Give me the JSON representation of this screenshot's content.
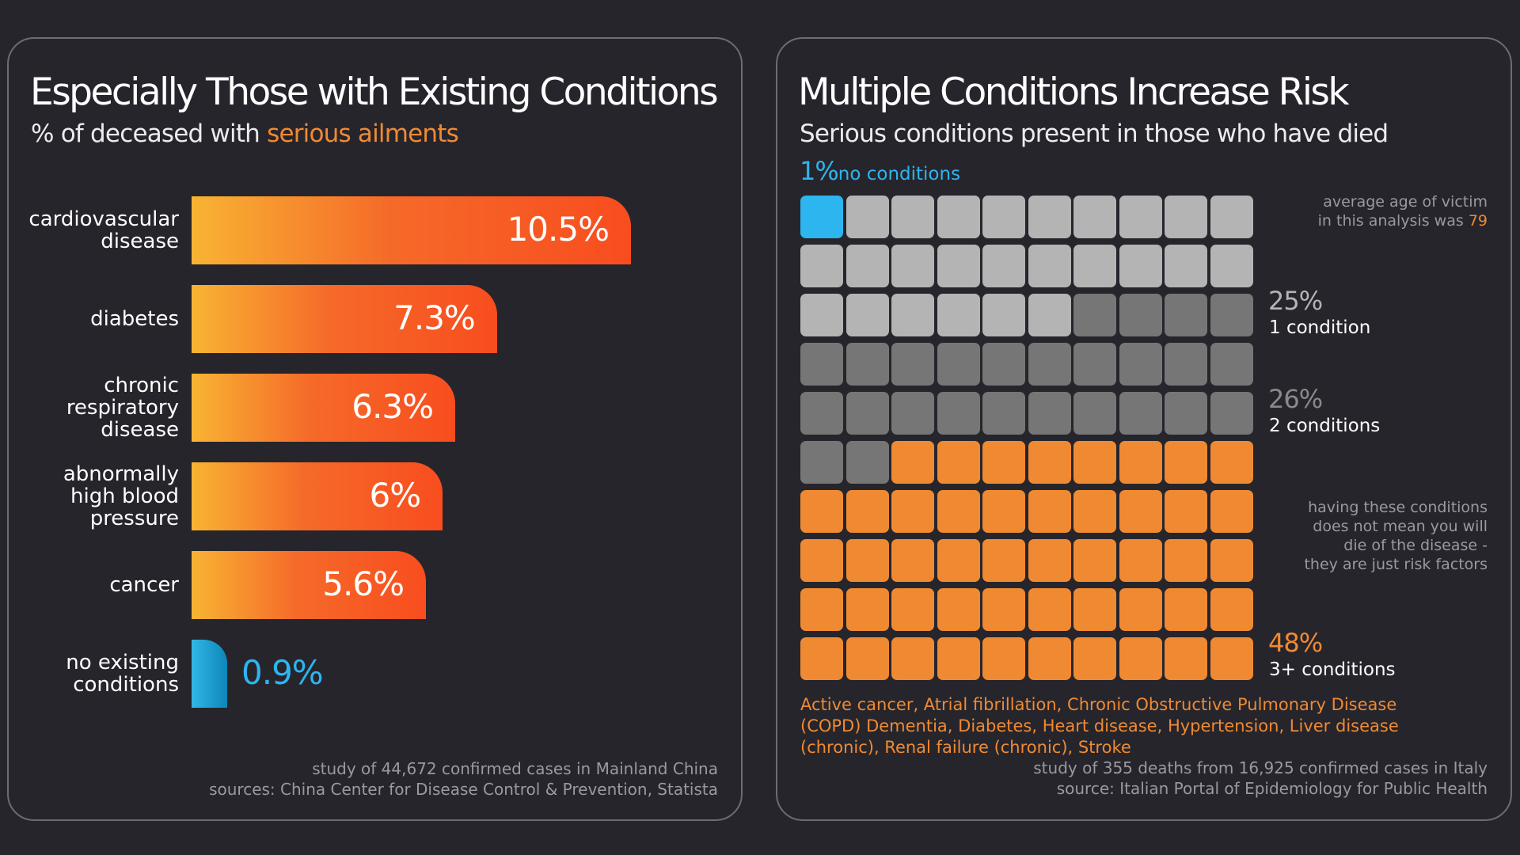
{
  "left": {
    "title": "Especially Those with Existing Conditions",
    "subtitle_prefix": "% of deceased with ",
    "subtitle_accent": "serious ailments",
    "footnote_line1": "study of 44,672 confirmed cases in Mainland China",
    "footnote_line2": "sources: China Center for Disease Control & Prevention, Statista"
  },
  "right": {
    "title": "Multiple Conditions Increase Risk",
    "subtitle": "Serious conditions present in those who have died",
    "no_conditions_pct": "1%",
    "no_conditions_label": "no conditions",
    "age_note_line1": "average age of victim",
    "age_note_line2_prefix": "in this analysis was ",
    "age_note_value": "79",
    "one_pct": "25%",
    "one_label": "1 condition",
    "two_pct": "26%",
    "two_label": "2 conditions",
    "three_pct": "48%",
    "three_label": "3+ conditions",
    "risk_note": [
      "having these conditions",
      "does not mean you will",
      "die of the disease -",
      "they are just risk factors"
    ],
    "conditions_text": "Active cancer, Atrial fibrillation, Chronic Obstructive Pulmonary Disease (COPD) Dementia, Diabetes, Heart disease, Hypertension, Liver disease (chronic), Renal failure (chronic), Stroke",
    "footnote_line1": "study of 355 deaths from 16,925 confirmed cases in Italy",
    "footnote_line2": "source: Italian Portal of Epidemiology for Public Health"
  },
  "colors": {
    "background": "#26252c",
    "bar_gradient_start": "#f8b433",
    "bar_gradient_end": "#f84d1f",
    "blue": "#2db5f0",
    "orange": "#f08a32",
    "light_gray": "#b4b4b4",
    "dark_gray": "#767676"
  },
  "chart_data": [
    {
      "type": "bar",
      "orientation": "horizontal",
      "title": "Especially Those with Existing Conditions",
      "subtitle": "% of deceased with serious ailments",
      "categories": [
        "cardiovascular\ndisease",
        "diabetes",
        "chronic\nrespiratory\ndisease",
        "abnormally\nhigh blood\npressure",
        "cancer",
        "no existing\nconditions"
      ],
      "values": [
        10.5,
        7.3,
        6.3,
        6,
        5.6,
        0.9
      ],
      "value_labels": [
        "10.5%",
        "7.3%",
        "6.3%",
        "6%",
        "5.6%",
        "0.9%"
      ],
      "bar_colors": [
        "gradient-orange",
        "gradient-orange",
        "gradient-orange",
        "gradient-orange",
        "gradient-orange",
        "blue"
      ]
    },
    {
      "type": "waffle",
      "title": "Multiple Conditions Increase Risk",
      "subtitle": "Serious conditions present in those who have died",
      "grid": [
        10,
        10
      ],
      "series": [
        {
          "name": "no conditions",
          "value": 1,
          "color": "#2db5f0"
        },
        {
          "name": "1 condition",
          "value": 25,
          "color": "#b4b4b4"
        },
        {
          "name": "2 conditions",
          "value": 26,
          "color": "#767676"
        },
        {
          "name": "3+ conditions",
          "value": 48,
          "color": "#f08a32"
        }
      ]
    }
  ]
}
